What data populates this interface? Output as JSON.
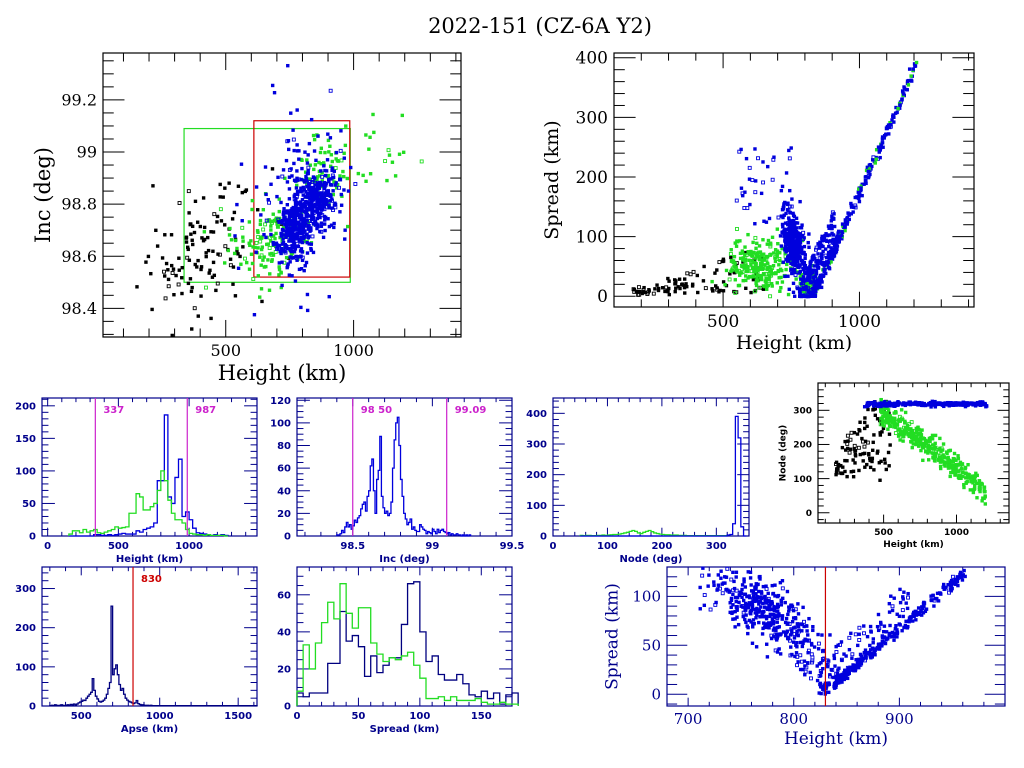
{
  "title": "2022-151 (CZ-6A Y2)",
  "colors": {
    "black": "#000000",
    "green": "#22dd22",
    "blue": "#0000dd",
    "navy": "#000080",
    "magenta": "#cc22cc",
    "red": "#cc0000",
    "axis_dark": "#000000",
    "axis_blue": "#00008b"
  },
  "chart_data": [
    {
      "id": "inc-vs-height",
      "type": "scatter",
      "title": "",
      "xlabel": "Height (km)",
      "ylabel": "Inc (deg)",
      "xlim": [
        20,
        1420
      ],
      "ylim": [
        98.29,
        99.38
      ],
      "xticks": [
        500,
        1000
      ],
      "xtick_labels": [
        "500",
        "1000"
      ],
      "yticks": [
        98.4,
        98.6,
        98.8,
        99.0,
        99.2
      ],
      "ytick_labels": [
        "98.4",
        "98.6",
        "98.8",
        "99",
        "99.2"
      ],
      "boxes": [
        {
          "color": "green",
          "x": [
            337,
            987
          ],
          "y": [
            98.5,
            99.09
          ]
        },
        {
          "color": "red",
          "x": [
            610,
            985
          ],
          "y": [
            98.52,
            99.12
          ]
        }
      ],
      "series": [
        {
          "name": "black",
          "clusters": [
            {
              "cx": 400,
              "cy": 98.62,
              "sx": 120,
              "sy": 0.12,
              "n": 120
            }
          ]
        },
        {
          "name": "green",
          "clusters": [
            {
              "cx": 660,
              "cy": 98.66,
              "sx": 70,
              "sy": 0.08,
              "n": 140
            },
            {
              "cx": 870,
              "cy": 98.9,
              "sx": 60,
              "sy": 0.08,
              "n": 80
            },
            {
              "cx": 1100,
              "cy": 99.0,
              "sx": 70,
              "sy": 0.1,
              "n": 20
            }
          ]
        },
        {
          "name": "blue",
          "clusters": [
            {
              "cx": 760,
              "cy": 98.7,
              "sx": 35,
              "sy": 0.06,
              "n": 250
            },
            {
              "cx": 850,
              "cy": 98.81,
              "sx": 45,
              "sy": 0.06,
              "n": 300
            },
            {
              "cx": 800,
              "cy": 98.85,
              "sx": 100,
              "sy": 0.18,
              "n": 120
            }
          ]
        }
      ]
    },
    {
      "id": "spread-vs-height",
      "type": "scatter",
      "title": "",
      "xlabel": "Height (km)",
      "ylabel": "Spread (km)",
      "xlim": [
        100,
        1420
      ],
      "ylim": [
        -18,
        408
      ],
      "xticks": [
        500,
        1000
      ],
      "xtick_labels": [
        "500",
        "1000"
      ],
      "yticks": [
        0,
        100,
        200,
        300,
        400
      ],
      "ytick_labels": [
        "0",
        "100",
        "200",
        "300",
        "400"
      ],
      "series": [
        {
          "name": "black",
          "points_desc": "low arc 150-650 km, spread 0-150"
        },
        {
          "name": "green",
          "points_desc": "cluster 600-800 km, spread 0-100; upper V branch to 1200 km"
        },
        {
          "name": "blue",
          "points_desc": "V-shape minimum at ~830 km; right branch rises to ~390 km spread at 1210 km"
        }
      ]
    },
    {
      "id": "height-hist",
      "type": "line",
      "xlabel": "Height (km)",
      "xlim": [
        -40,
        1480
      ],
      "ylim": [
        0,
        212
      ],
      "xticks": [
        0,
        500,
        1000
      ],
      "yticks": [
        0,
        50,
        100,
        150,
        200
      ],
      "markers": [
        {
          "value": 337,
          "label": "337",
          "color": "magenta"
        },
        {
          "value": 987,
          "label": "987",
          "color": "magenta"
        }
      ],
      "bin_start": 150,
      "bin_width": 25,
      "series": [
        {
          "name": "blue",
          "values": [
            0,
            0,
            0,
            0,
            0,
            0,
            0,
            2,
            2,
            1,
            1,
            2,
            1,
            2,
            3,
            4,
            3,
            3,
            3,
            8,
            6,
            10,
            12,
            14,
            20,
            85,
            85,
            186,
            60,
            50,
            90,
            118,
            30,
            37,
            25,
            12,
            5,
            4,
            3,
            2,
            1,
            2,
            1,
            2,
            1
          ]
        },
        {
          "name": "green",
          "values": [
            3,
            8,
            8,
            5,
            10,
            6,
            8,
            10,
            5,
            4,
            6,
            8,
            10,
            14,
            12,
            13,
            14,
            35,
            35,
            65,
            60,
            40,
            40,
            45,
            50,
            70,
            100,
            85,
            55,
            35,
            25,
            25,
            20,
            10,
            4,
            3,
            2,
            2,
            1,
            2,
            1,
            1,
            1,
            1,
            0
          ]
        }
      ]
    },
    {
      "id": "inc-hist",
      "type": "line",
      "xlabel": "Inc (deg)",
      "xlim": [
        98.15,
        99.5
      ],
      "ylim": [
        0,
        122
      ],
      "xticks": [
        98.5,
        99.0,
        99.5
      ],
      "xtick_labels": [
        "98.5",
        "99",
        "99.5"
      ],
      "yticks": [
        0,
        20,
        40,
        60,
        80,
        100,
        120
      ],
      "markers": [
        {
          "value": 98.5,
          "label": "98 50",
          "color": "magenta"
        },
        {
          "value": 99.09,
          "label": "99.09",
          "color": "magenta"
        }
      ],
      "bin_start": 98.4,
      "bin_width": 0.01,
      "series": [
        {
          "name": "blue",
          "values": [
            1,
            1,
            2,
            5,
            3,
            8,
            12,
            8,
            10,
            6,
            9,
            14,
            12,
            16,
            18,
            24,
            28,
            30,
            22,
            35,
            40,
            62,
            68,
            40,
            20,
            50,
            58,
            88,
            35,
            25,
            20,
            22,
            18,
            20,
            30,
            60,
            85,
            100,
            105,
            80,
            50,
            35,
            20,
            15,
            10,
            12,
            15,
            6,
            8,
            5,
            4,
            4,
            10,
            8,
            6,
            5,
            2,
            4,
            3,
            2,
            6,
            4,
            2,
            6,
            3,
            5,
            6,
            4,
            3,
            2,
            3,
            1,
            2,
            1,
            1,
            2,
            1,
            1,
            0,
            1,
            0,
            1,
            0,
            1
          ]
        }
      ]
    },
    {
      "id": "node-hist",
      "type": "line",
      "xlabel": "Node (deg)",
      "xlim": [
        0,
        360
      ],
      "ylim": [
        0,
        450
      ],
      "xticks": [
        0,
        100,
        200,
        300
      ],
      "yticks": [
        0,
        100,
        200,
        300,
        400
      ],
      "bin_start": 50,
      "bin_width": 5,
      "series": [
        {
          "name": "green",
          "values": [
            2,
            1,
            2,
            2,
            1,
            1,
            2,
            2,
            3,
            2,
            3,
            4,
            5,
            5,
            6,
            8,
            10,
            12,
            15,
            18,
            15,
            10,
            8,
            12,
            15,
            18,
            14,
            10,
            8,
            6,
            5,
            4,
            4,
            3,
            3,
            3,
            2,
            2,
            2,
            1,
            1,
            1,
            1,
            1,
            1,
            1,
            1,
            1,
            1,
            1,
            1,
            1,
            1,
            1
          ]
        },
        {
          "name": "blue",
          "values": [
            0,
            0,
            0,
            0,
            0,
            0,
            0,
            0,
            0,
            0,
            0,
            0,
            0,
            0,
            0,
            0,
            0,
            0,
            0,
            0,
            0,
            0,
            0,
            0,
            0,
            0,
            0,
            0,
            0,
            0,
            0,
            0,
            0,
            0,
            0,
            0,
            0,
            0,
            0,
            0,
            0,
            0,
            0,
            0,
            0,
            0,
            0,
            0,
            0,
            0,
            0,
            0,
            0,
            0,
            3,
            5,
            40,
            390,
            320,
            30,
            0
          ]
        }
      ]
    },
    {
      "id": "node-vs-height",
      "type": "scatter",
      "xlabel": "Height (km)",
      "ylabel": "Node (deg)",
      "xlim": [
        50,
        1360
      ],
      "ylim": [
        -30,
        380
      ],
      "xticks": [
        500,
        1000
      ],
      "yticks": [
        0,
        100,
        200,
        300
      ],
      "series": [
        {
          "name": "black",
          "points_desc": "150-550 km, node 80-320"
        },
        {
          "name": "green",
          "points_desc": "descending band from ~300 deg at 500 km to ~60 deg at 1200 km"
        },
        {
          "name": "blue",
          "points_desc": "flat line ~318 deg from 370 to 1210 km"
        }
      ]
    },
    {
      "id": "apse-hist",
      "type": "line",
      "xlabel": "Apse (km)",
      "xlim": [
        250,
        1620
      ],
      "ylim": [
        0,
        355
      ],
      "xticks": [
        500,
        1000,
        1500
      ],
      "yticks": [
        0,
        100,
        200,
        300
      ],
      "markers": [
        {
          "value": 830,
          "label": "830",
          "color": "red"
        }
      ],
      "bin_start": 300,
      "bin_width": 10,
      "series": [
        {
          "name": "navy",
          "values": [
            1,
            2,
            1,
            3,
            2,
            1,
            2,
            3,
            2,
            1,
            2,
            3,
            2,
            4,
            3,
            5,
            3,
            5,
            8,
            10,
            12,
            15,
            14,
            20,
            25,
            30,
            35,
            70,
            40,
            25,
            18,
            12,
            10,
            12,
            15,
            20,
            30,
            45,
            60,
            255,
            80,
            95,
            105,
            80,
            55,
            40,
            45,
            30,
            20,
            15,
            12,
            10,
            8,
            6,
            8,
            14,
            6,
            4,
            3,
            3,
            2,
            2,
            2,
            1,
            2,
            1,
            1,
            1,
            1,
            1,
            1,
            1,
            1,
            1,
            1,
            1,
            1,
            1,
            1,
            1,
            1,
            1,
            1,
            1,
            1,
            1,
            1,
            1,
            1,
            1,
            1,
            1,
            1,
            1,
            1,
            1,
            1,
            1,
            1,
            1,
            1,
            1,
            1,
            1,
            1,
            1,
            1,
            1,
            1,
            1,
            1,
            1,
            1,
            1,
            1,
            1,
            1,
            1,
            1,
            1,
            1,
            1,
            1,
            1,
            1,
            1,
            1,
            1,
            1,
            1,
            1,
            1
          ]
        }
      ]
    },
    {
      "id": "spread-hist",
      "type": "line",
      "xlabel": "Spread (km)",
      "xlim": [
        0,
        175
      ],
      "ylim": [
        0,
        75
      ],
      "xticks": [
        0,
        50,
        100,
        150
      ],
      "yticks": [
        0,
        20,
        40,
        60
      ],
      "bin_start": 0,
      "bin_width": 5,
      "series": [
        {
          "name": "navy",
          "values": [
            7,
            5,
            7,
            7,
            7,
            23,
            23,
            51,
            35,
            38,
            32,
            16,
            27,
            18,
            22,
            26,
            26,
            44,
            66,
            67,
            40,
            24,
            27,
            17,
            14,
            14,
            17,
            12,
            6,
            5,
            8,
            4,
            7,
            1,
            6,
            7
          ]
        },
        {
          "name": "green",
          "values": [
            8,
            33,
            20,
            34,
            45,
            56,
            47,
            66,
            50,
            42,
            53,
            53,
            34,
            28,
            24,
            26,
            25,
            27,
            29,
            22,
            15,
            4,
            4,
            5,
            3,
            5,
            3,
            3,
            3,
            4,
            2,
            1,
            1,
            2,
            1,
            1
          ]
        }
      ]
    },
    {
      "id": "spread-vs-height-zoom",
      "type": "scatter",
      "xlabel": "Height (km)",
      "ylabel": "Spread (km)",
      "xlim": [
        680,
        1000
      ],
      "ylim": [
        -12,
        130
      ],
      "xticks": [
        700,
        800,
        900
      ],
      "yticks": [
        0,
        50,
        100
      ],
      "markers": [
        {
          "value": 830,
          "color": "red"
        }
      ],
      "series": [
        {
          "name": "blue",
          "points_desc": "left cloud centered (770, 90); V minimum at ~830 km; right linear branch to (960,125)"
        }
      ]
    }
  ]
}
